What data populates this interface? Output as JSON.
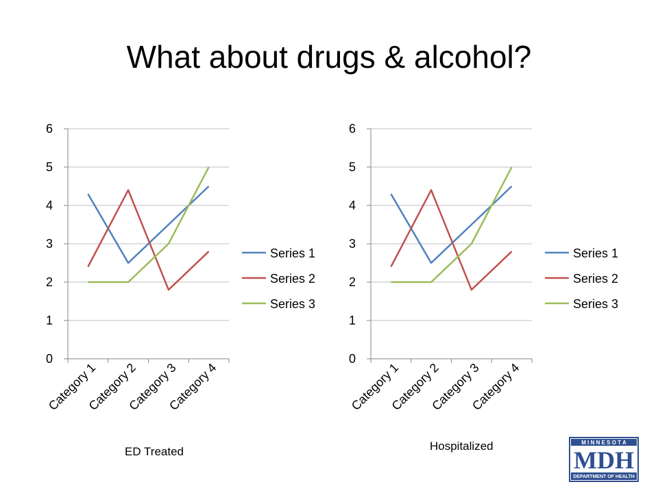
{
  "slide": {
    "title": "What about drugs & alcohol?"
  },
  "captions": {
    "left": "ED Treated",
    "right": "Hospitalized"
  },
  "logo": {
    "top_text": "M I N N E S O T A",
    "main_text": "MDH",
    "bottom_text": "DEPARTMENT OF HEALTH",
    "color": "#2f4f8f"
  },
  "chart_data": [
    {
      "type": "line",
      "categories": [
        "Category 1",
        "Category 2",
        "Category 3",
        "Category 4"
      ],
      "series": [
        {
          "name": "Series 1",
          "values": [
            4.3,
            2.5,
            3.5,
            4.5
          ],
          "color": "#4f81bd"
        },
        {
          "name": "Series 2",
          "values": [
            2.4,
            4.4,
            1.8,
            2.8
          ],
          "color": "#c0504d"
        },
        {
          "name": "Series 3",
          "values": [
            2,
            2,
            3,
            5
          ],
          "color": "#9bbb59"
        }
      ],
      "ylim": [
        0,
        6
      ],
      "yticks": [
        0,
        1,
        2,
        3,
        4,
        5,
        6
      ],
      "grid": true,
      "legend": "right"
    },
    {
      "type": "line",
      "categories": [
        "Category 1",
        "Category 2",
        "Category 3",
        "Category 4"
      ],
      "series": [
        {
          "name": "Series 1",
          "values": [
            4.3,
            2.5,
            3.5,
            4.5
          ],
          "color": "#4f81bd"
        },
        {
          "name": "Series 2",
          "values": [
            2.4,
            4.4,
            1.8,
            2.8
          ],
          "color": "#c0504d"
        },
        {
          "name": "Series 3",
          "values": [
            2,
            2,
            3,
            5
          ],
          "color": "#9bbb59"
        }
      ],
      "ylim": [
        0,
        6
      ],
      "yticks": [
        0,
        1,
        2,
        3,
        4,
        5,
        6
      ],
      "grid": true,
      "legend": "right"
    }
  ]
}
